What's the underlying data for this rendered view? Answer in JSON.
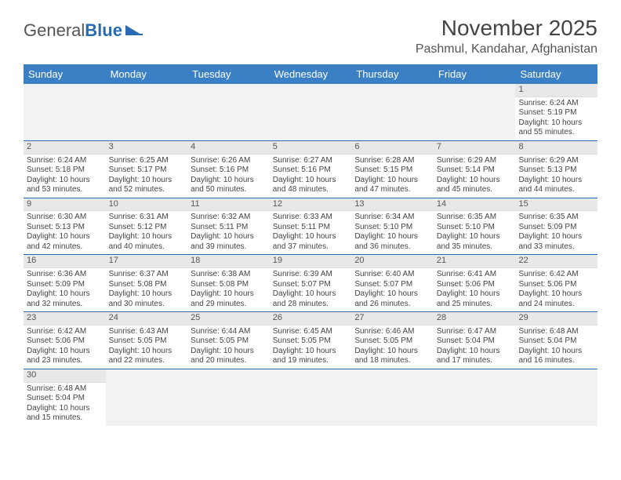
{
  "brand": {
    "part1": "General",
    "part2": "Blue"
  },
  "title": "November 2025",
  "location": "Pashmul, Kandahar, Afghanistan",
  "colors": {
    "header_bg": "#3b7fc4",
    "header_text": "#ffffff",
    "row_divider": "#2a6ab0",
    "daynum_bg": "#e8e8e8",
    "empty_bg": "#f2f2f2",
    "text": "#444444",
    "title_text": "#444444"
  },
  "day_labels": [
    "Sunday",
    "Monday",
    "Tuesday",
    "Wednesday",
    "Thursday",
    "Friday",
    "Saturday"
  ],
  "weeks": [
    [
      null,
      null,
      null,
      null,
      null,
      null,
      {
        "n": "1",
        "sr": "Sunrise: 6:24 AM",
        "ss": "Sunset: 5:19 PM",
        "dl": "Daylight: 10 hours and 55 minutes."
      }
    ],
    [
      {
        "n": "2",
        "sr": "Sunrise: 6:24 AM",
        "ss": "Sunset: 5:18 PM",
        "dl": "Daylight: 10 hours and 53 minutes."
      },
      {
        "n": "3",
        "sr": "Sunrise: 6:25 AM",
        "ss": "Sunset: 5:17 PM",
        "dl": "Daylight: 10 hours and 52 minutes."
      },
      {
        "n": "4",
        "sr": "Sunrise: 6:26 AM",
        "ss": "Sunset: 5:16 PM",
        "dl": "Daylight: 10 hours and 50 minutes."
      },
      {
        "n": "5",
        "sr": "Sunrise: 6:27 AM",
        "ss": "Sunset: 5:16 PM",
        "dl": "Daylight: 10 hours and 48 minutes."
      },
      {
        "n": "6",
        "sr": "Sunrise: 6:28 AM",
        "ss": "Sunset: 5:15 PM",
        "dl": "Daylight: 10 hours and 47 minutes."
      },
      {
        "n": "7",
        "sr": "Sunrise: 6:29 AM",
        "ss": "Sunset: 5:14 PM",
        "dl": "Daylight: 10 hours and 45 minutes."
      },
      {
        "n": "8",
        "sr": "Sunrise: 6:29 AM",
        "ss": "Sunset: 5:13 PM",
        "dl": "Daylight: 10 hours and 44 minutes."
      }
    ],
    [
      {
        "n": "9",
        "sr": "Sunrise: 6:30 AM",
        "ss": "Sunset: 5:13 PM",
        "dl": "Daylight: 10 hours and 42 minutes."
      },
      {
        "n": "10",
        "sr": "Sunrise: 6:31 AM",
        "ss": "Sunset: 5:12 PM",
        "dl": "Daylight: 10 hours and 40 minutes."
      },
      {
        "n": "11",
        "sr": "Sunrise: 6:32 AM",
        "ss": "Sunset: 5:11 PM",
        "dl": "Daylight: 10 hours and 39 minutes."
      },
      {
        "n": "12",
        "sr": "Sunrise: 6:33 AM",
        "ss": "Sunset: 5:11 PM",
        "dl": "Daylight: 10 hours and 37 minutes."
      },
      {
        "n": "13",
        "sr": "Sunrise: 6:34 AM",
        "ss": "Sunset: 5:10 PM",
        "dl": "Daylight: 10 hours and 36 minutes."
      },
      {
        "n": "14",
        "sr": "Sunrise: 6:35 AM",
        "ss": "Sunset: 5:10 PM",
        "dl": "Daylight: 10 hours and 35 minutes."
      },
      {
        "n": "15",
        "sr": "Sunrise: 6:35 AM",
        "ss": "Sunset: 5:09 PM",
        "dl": "Daylight: 10 hours and 33 minutes."
      }
    ],
    [
      {
        "n": "16",
        "sr": "Sunrise: 6:36 AM",
        "ss": "Sunset: 5:09 PM",
        "dl": "Daylight: 10 hours and 32 minutes."
      },
      {
        "n": "17",
        "sr": "Sunrise: 6:37 AM",
        "ss": "Sunset: 5:08 PM",
        "dl": "Daylight: 10 hours and 30 minutes."
      },
      {
        "n": "18",
        "sr": "Sunrise: 6:38 AM",
        "ss": "Sunset: 5:08 PM",
        "dl": "Daylight: 10 hours and 29 minutes."
      },
      {
        "n": "19",
        "sr": "Sunrise: 6:39 AM",
        "ss": "Sunset: 5:07 PM",
        "dl": "Daylight: 10 hours and 28 minutes."
      },
      {
        "n": "20",
        "sr": "Sunrise: 6:40 AM",
        "ss": "Sunset: 5:07 PM",
        "dl": "Daylight: 10 hours and 26 minutes."
      },
      {
        "n": "21",
        "sr": "Sunrise: 6:41 AM",
        "ss": "Sunset: 5:06 PM",
        "dl": "Daylight: 10 hours and 25 minutes."
      },
      {
        "n": "22",
        "sr": "Sunrise: 6:42 AM",
        "ss": "Sunset: 5:06 PM",
        "dl": "Daylight: 10 hours and 24 minutes."
      }
    ],
    [
      {
        "n": "23",
        "sr": "Sunrise: 6:42 AM",
        "ss": "Sunset: 5:06 PM",
        "dl": "Daylight: 10 hours and 23 minutes."
      },
      {
        "n": "24",
        "sr": "Sunrise: 6:43 AM",
        "ss": "Sunset: 5:05 PM",
        "dl": "Daylight: 10 hours and 22 minutes."
      },
      {
        "n": "25",
        "sr": "Sunrise: 6:44 AM",
        "ss": "Sunset: 5:05 PM",
        "dl": "Daylight: 10 hours and 20 minutes."
      },
      {
        "n": "26",
        "sr": "Sunrise: 6:45 AM",
        "ss": "Sunset: 5:05 PM",
        "dl": "Daylight: 10 hours and 19 minutes."
      },
      {
        "n": "27",
        "sr": "Sunrise: 6:46 AM",
        "ss": "Sunset: 5:05 PM",
        "dl": "Daylight: 10 hours and 18 minutes."
      },
      {
        "n": "28",
        "sr": "Sunrise: 6:47 AM",
        "ss": "Sunset: 5:04 PM",
        "dl": "Daylight: 10 hours and 17 minutes."
      },
      {
        "n": "29",
        "sr": "Sunrise: 6:48 AM",
        "ss": "Sunset: 5:04 PM",
        "dl": "Daylight: 10 hours and 16 minutes."
      }
    ],
    [
      {
        "n": "30",
        "sr": "Sunrise: 6:48 AM",
        "ss": "Sunset: 5:04 PM",
        "dl": "Daylight: 10 hours and 15 minutes."
      },
      null,
      null,
      null,
      null,
      null,
      null
    ]
  ]
}
